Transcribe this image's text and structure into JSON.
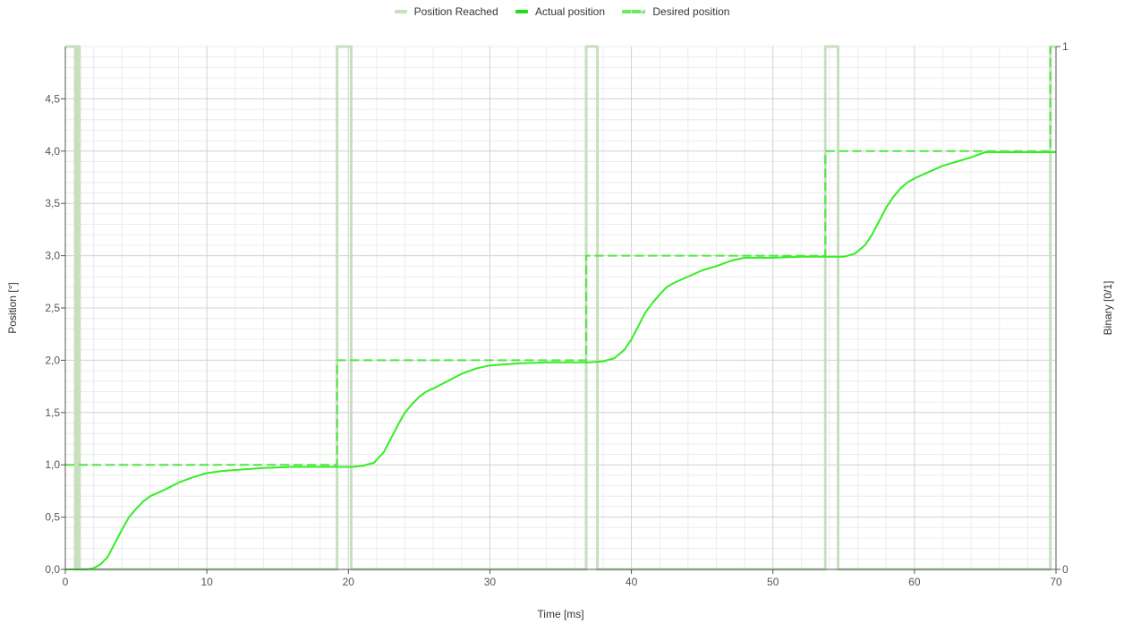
{
  "chart_data": {
    "type": "line",
    "xlabel": "Time [ms]",
    "ylabel": "Position [°]",
    "y2label": "Binary [0/1]",
    "xlim": [
      0,
      70
    ],
    "ylim": [
      0,
      5
    ],
    "y2lim": [
      0,
      1
    ],
    "xticks": [
      0,
      10,
      20,
      30,
      40,
      50,
      60,
      70
    ],
    "xtick_labels": [
      "0",
      "10",
      "20",
      "30",
      "40",
      "50",
      "60",
      "70"
    ],
    "yticks": [
      0,
      0.5,
      1,
      1.5,
      2,
      2.5,
      3,
      3.5,
      4,
      4.5
    ],
    "ytick_labels": [
      "0,0",
      "0,5",
      "1,0",
      "1,5",
      "2,0",
      "2,5",
      "3,0",
      "3,5",
      "4,0",
      "4,5"
    ],
    "y2ticks": [
      0,
      1
    ],
    "y2tick_labels": [
      "0",
      "1"
    ],
    "grid": true,
    "legend_position": "top-center",
    "series": [
      {
        "name": "Position Reached",
        "axis": "right",
        "color": "#c6dfbf",
        "style": "solid",
        "x": [
          0,
          0.7,
          0.7,
          0.8,
          0.8,
          1.0,
          1.0,
          19.2,
          19.2,
          20.2,
          20.2,
          36.8,
          36.8,
          37.6,
          37.6,
          53.7,
          53.7,
          54.6,
          54.6,
          69.6,
          69.6,
          70
        ],
        "y": [
          1,
          1,
          0,
          0,
          1,
          1,
          0,
          0,
          1,
          1,
          0,
          0,
          1,
          1,
          0,
          0,
          1,
          1,
          0,
          0,
          1,
          1
        ]
      },
      {
        "name": "Actual position",
        "axis": "left",
        "color": "#33ee22",
        "style": "solid",
        "x": [
          0,
          1.5,
          2,
          2.5,
          3,
          3.5,
          4,
          4.5,
          5,
          5.5,
          6,
          7,
          8,
          9,
          10,
          11,
          12,
          14,
          16,
          18,
          20.3,
          21,
          21.8,
          22.5,
          23,
          23.5,
          24,
          24.5,
          25,
          25.5,
          26,
          27,
          28,
          29,
          30,
          32,
          34,
          36,
          37,
          38,
          38.8,
          39.5,
          40,
          40.5,
          41,
          41.5,
          42,
          42.5,
          43,
          44,
          45,
          46,
          47,
          48,
          50,
          52,
          54,
          55,
          55.8,
          56.5,
          57,
          57.5,
          58,
          58.5,
          59,
          59.5,
          60,
          61,
          62,
          63,
          64,
          65,
          66,
          68,
          70
        ],
        "y": [
          0,
          0,
          0.01,
          0.05,
          0.12,
          0.25,
          0.38,
          0.5,
          0.58,
          0.65,
          0.7,
          0.76,
          0.83,
          0.88,
          0.92,
          0.94,
          0.95,
          0.97,
          0.98,
          0.98,
          0.98,
          0.99,
          1.02,
          1.12,
          1.25,
          1.38,
          1.5,
          1.58,
          1.65,
          1.7,
          1.73,
          1.8,
          1.87,
          1.92,
          1.95,
          1.97,
          1.98,
          1.98,
          1.98,
          1.99,
          2.02,
          2.1,
          2.2,
          2.33,
          2.46,
          2.55,
          2.63,
          2.7,
          2.74,
          2.8,
          2.86,
          2.9,
          2.95,
          2.98,
          2.98,
          2.99,
          2.99,
          2.99,
          3.02,
          3.1,
          3.2,
          3.33,
          3.46,
          3.56,
          3.64,
          3.7,
          3.74,
          3.8,
          3.86,
          3.9,
          3.94,
          3.99,
          3.99,
          3.99,
          3.99
        ]
      },
      {
        "name": "Desired position",
        "axis": "left",
        "color": "#4de840",
        "style": "dashed",
        "x": [
          0,
          19.2,
          19.2,
          36.8,
          36.8,
          53.7,
          53.7,
          69.6,
          69.6
        ],
        "y": [
          1,
          1,
          2,
          2,
          3,
          3,
          4,
          4,
          5
        ]
      }
    ]
  }
}
